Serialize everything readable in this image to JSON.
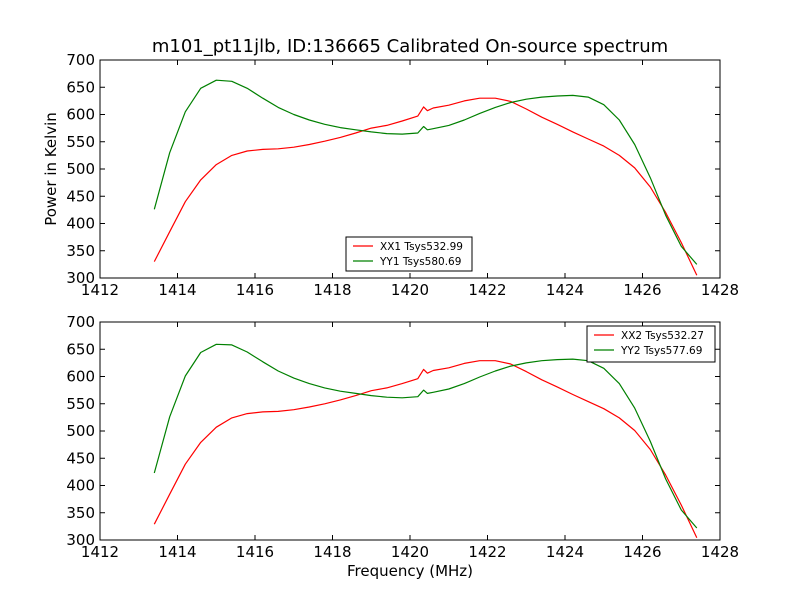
{
  "figure": {
    "title": "m101_pt11jlb, ID:136665 Calibrated On-source spectrum",
    "ylabel": "Power in Kelvin",
    "xlabel": "Frequency (MHz)"
  },
  "chart_data": [
    {
      "type": "line",
      "title": "m101_pt11jlb, ID:136665 Calibrated On-source spectrum",
      "xlabel": "",
      "ylabel": "Power in Kelvin",
      "xlim": [
        1412,
        1428
      ],
      "ylim": [
        300,
        700
      ],
      "xticks": [
        1412,
        1414,
        1416,
        1418,
        1420,
        1422,
        1424,
        1426,
        1428
      ],
      "yticks": [
        300,
        350,
        400,
        450,
        500,
        550,
        600,
        650,
        700
      ],
      "grid": false,
      "legend_position": "lower-center",
      "series": [
        {
          "name": "XX1 Tsys532.99",
          "color": "#ff0000",
          "x": [
            1413.4,
            1413.8,
            1414.2,
            1414.6,
            1415.0,
            1415.4,
            1415.8,
            1416.2,
            1416.6,
            1417.0,
            1417.4,
            1417.8,
            1418.2,
            1418.6,
            1419.0,
            1419.4,
            1419.8,
            1420.2,
            1420.35,
            1420.45,
            1420.6,
            1421.0,
            1421.4,
            1421.8,
            1422.2,
            1422.6,
            1423.0,
            1423.4,
            1423.8,
            1424.2,
            1424.6,
            1425.0,
            1425.4,
            1425.8,
            1426.2,
            1426.6,
            1427.0,
            1427.4
          ],
          "values": [
            330,
            385,
            440,
            480,
            508,
            525,
            533,
            536,
            537,
            540,
            545,
            551,
            558,
            566,
            575,
            580,
            588,
            597,
            614,
            607,
            612,
            617,
            625,
            630,
            630,
            624,
            610,
            595,
            582,
            568,
            555,
            542,
            525,
            502,
            467,
            420,
            365,
            305
          ]
        },
        {
          "name": "YY1 Tsys580.69",
          "color": "#008000",
          "x": [
            1413.4,
            1413.8,
            1414.2,
            1414.6,
            1415.0,
            1415.4,
            1415.8,
            1416.2,
            1416.6,
            1417.0,
            1417.4,
            1417.8,
            1418.2,
            1418.6,
            1419.0,
            1419.4,
            1419.8,
            1420.2,
            1420.35,
            1420.45,
            1420.6,
            1421.0,
            1421.4,
            1421.8,
            1422.2,
            1422.6,
            1423.0,
            1423.4,
            1423.8,
            1424.2,
            1424.6,
            1425.0,
            1425.4,
            1425.8,
            1426.2,
            1426.6,
            1427.0,
            1427.4
          ],
          "values": [
            426,
            530,
            605,
            648,
            663,
            661,
            648,
            630,
            613,
            600,
            590,
            582,
            576,
            572,
            568,
            565,
            564,
            566,
            578,
            572,
            574,
            580,
            590,
            602,
            613,
            622,
            628,
            632,
            634,
            635,
            632,
            618,
            590,
            545,
            484,
            415,
            358,
            325
          ]
        }
      ]
    },
    {
      "type": "line",
      "title": "",
      "xlabel": "Frequency (MHz)",
      "ylabel": "",
      "xlim": [
        1412,
        1428
      ],
      "ylim": [
        300,
        700
      ],
      "xticks": [
        1412,
        1414,
        1416,
        1418,
        1420,
        1422,
        1424,
        1426,
        1428
      ],
      "yticks": [
        300,
        350,
        400,
        450,
        500,
        550,
        600,
        650,
        700
      ],
      "grid": false,
      "legend_position": "upper-right",
      "series": [
        {
          "name": "XX2 Tsys532.27",
          "color": "#ff0000",
          "x": [
            1413.4,
            1413.8,
            1414.2,
            1414.6,
            1415.0,
            1415.4,
            1415.8,
            1416.2,
            1416.6,
            1417.0,
            1417.4,
            1417.8,
            1418.2,
            1418.6,
            1419.0,
            1419.4,
            1419.8,
            1420.2,
            1420.35,
            1420.45,
            1420.6,
            1421.0,
            1421.4,
            1421.8,
            1422.2,
            1422.6,
            1423.0,
            1423.4,
            1423.8,
            1424.2,
            1424.6,
            1425.0,
            1425.4,
            1425.8,
            1426.2,
            1426.6,
            1427.0,
            1427.4
          ],
          "values": [
            329,
            384,
            439,
            479,
            507,
            524,
            532,
            535,
            536,
            539,
            544,
            550,
            557,
            565,
            574,
            579,
            587,
            596,
            613,
            606,
            611,
            616,
            624,
            629,
            629,
            623,
            609,
            594,
            581,
            567,
            554,
            541,
            524,
            501,
            466,
            419,
            364,
            304
          ]
        },
        {
          "name": "YY2 Tsys577.69",
          "color": "#008000",
          "x": [
            1413.4,
            1413.8,
            1414.2,
            1414.6,
            1415.0,
            1415.4,
            1415.8,
            1416.2,
            1416.6,
            1417.0,
            1417.4,
            1417.8,
            1418.2,
            1418.6,
            1419.0,
            1419.4,
            1419.8,
            1420.2,
            1420.35,
            1420.45,
            1420.6,
            1421.0,
            1421.4,
            1421.8,
            1422.2,
            1422.6,
            1423.0,
            1423.4,
            1423.8,
            1424.2,
            1424.6,
            1425.0,
            1425.4,
            1425.8,
            1426.2,
            1426.6,
            1427.0,
            1427.4
          ],
          "values": [
            423,
            526,
            601,
            644,
            659,
            658,
            645,
            627,
            610,
            597,
            587,
            579,
            573,
            569,
            565,
            562,
            561,
            563,
            575,
            569,
            571,
            577,
            587,
            599,
            610,
            619,
            625,
            629,
            631,
            632,
            629,
            615,
            587,
            542,
            481,
            412,
            355,
            322
          ]
        }
      ]
    }
  ]
}
